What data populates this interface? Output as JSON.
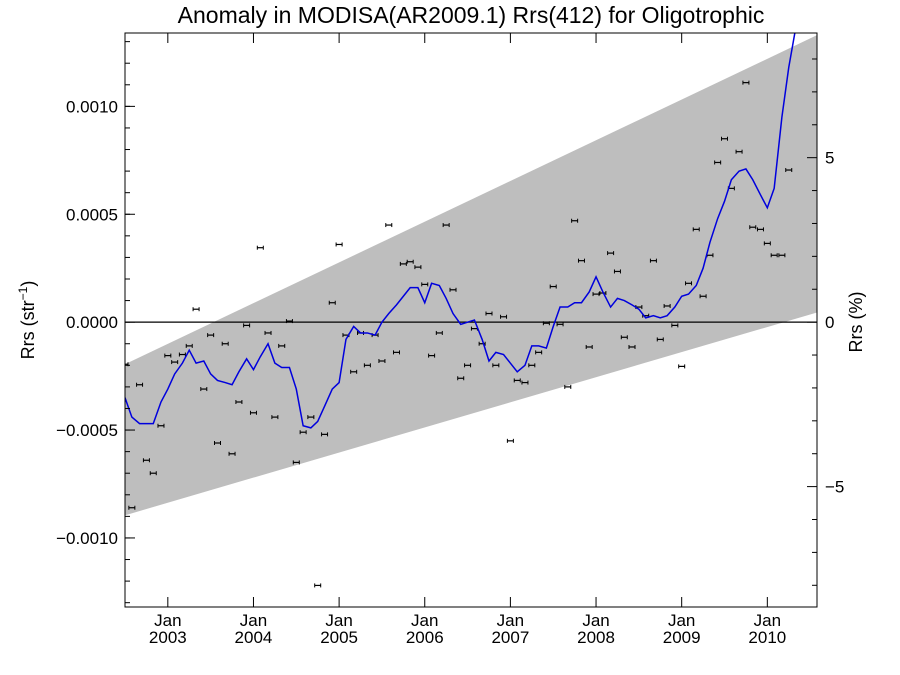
{
  "chart_data": {
    "type": "scatter",
    "title": "Anomaly in MODISA(AR2009.1) Rrs(412) for Oligotrophic",
    "ylabel_main": "Rrs (str",
    "ylabel_sup": "−1",
    "ylabel_close": ")",
    "ylabel_right": "Rrs (%)",
    "x_range": [
      2002.5,
      2010.58
    ],
    "ylim": [
      -0.00132,
      0.00134
    ],
    "ylim_right": [
      -8.66,
      8.79
    ],
    "x_ticks": [
      {
        "x": 2003.0,
        "label1": "Jan",
        "label2": "2003"
      },
      {
        "x": 2004.0,
        "label1": "Jan",
        "label2": "2004"
      },
      {
        "x": 2005.0,
        "label1": "Jan",
        "label2": "2005"
      },
      {
        "x": 2006.0,
        "label1": "Jan",
        "label2": "2006"
      },
      {
        "x": 2007.0,
        "label1": "Jan",
        "label2": "2007"
      },
      {
        "x": 2008.0,
        "label1": "Jan",
        "label2": "2008"
      },
      {
        "x": 2009.0,
        "label1": "Jan",
        "label2": "2009"
      },
      {
        "x": 2010.0,
        "label1": "Jan",
        "label2": "2010"
      }
    ],
    "y_ticks": [
      {
        "v": 0.001,
        "label": "0.0010"
      },
      {
        "v": 0.0005,
        "label": "0.0005"
      },
      {
        "v": 0.0,
        "label": "0.0000"
      },
      {
        "v": -0.0005,
        "label": "−0.0005"
      },
      {
        "v": -0.001,
        "label": "−0.0010"
      }
    ],
    "y_ticks_right": [
      {
        "v": 5,
        "label": "5"
      },
      {
        "v": 0,
        "label": "0"
      },
      {
        "v": -5,
        "label": "−5"
      }
    ],
    "band": {
      "x": [
        2002.5,
        2010.58
      ],
      "upper": [
        -0.000195,
        0.00133
      ],
      "lower": [
        -0.000895,
        4.5e-05
      ]
    },
    "colors": {
      "band": "#bebebe",
      "line": "#0000dd",
      "points": "#000000",
      "zero": "#000000"
    },
    "series": [
      {
        "kind": "monthly_points",
        "x": [
          2002.5,
          2002.58,
          2002.67,
          2002.75,
          2002.83,
          2002.92,
          2003.0,
          2003.08,
          2003.17,
          2003.25,
          2003.33,
          2003.42,
          2003.5,
          2003.58,
          2003.67,
          2003.75,
          2003.83,
          2003.92,
          2004.0,
          2004.08,
          2004.17,
          2004.25,
          2004.33,
          2004.42,
          2004.5,
          2004.58,
          2004.67,
          2004.75,
          2004.83,
          2004.92,
          2005.0,
          2005.08,
          2005.17,
          2005.25,
          2005.33,
          2005.42,
          2005.5,
          2005.58,
          2005.67,
          2005.75,
          2005.83,
          2005.92,
          2006.0,
          2006.08,
          2006.17,
          2006.25,
          2006.33,
          2006.42,
          2006.5,
          2006.58,
          2006.67,
          2006.75,
          2006.83,
          2006.92,
          2007.0,
          2007.08,
          2007.17,
          2007.25,
          2007.33,
          2007.42,
          2007.5,
          2007.58,
          2007.67,
          2007.75,
          2007.83,
          2007.92,
          2008.0,
          2008.08,
          2008.17,
          2008.25,
          2008.33,
          2008.42,
          2008.5,
          2008.58,
          2008.67,
          2008.75,
          2008.83,
          2008.92,
          2009.0,
          2009.08,
          2009.17,
          2009.25,
          2009.33,
          2009.42,
          2009.5,
          2009.58,
          2009.67,
          2009.75,
          2009.83,
          2009.92,
          2010.0,
          2010.08,
          2010.17,
          2010.25
        ],
        "values": [
          -0.000195,
          -0.00086,
          -0.00029,
          -0.00064,
          -0.0007,
          -0.00048,
          -0.000155,
          -0.000185,
          -0.00015,
          -0.00011,
          6e-05,
          -0.00031,
          -6e-05,
          -0.00056,
          -0.0001,
          -0.00061,
          -0.00037,
          -1.5e-05,
          -0.00042,
          0.000345,
          -5e-05,
          -0.00044,
          -0.00011,
          5e-06,
          -0.00065,
          -0.00051,
          -0.00044,
          -0.00122,
          -0.00052,
          9e-05,
          0.00036,
          -6e-05,
          -0.00023,
          -5e-05,
          -0.0002,
          -6e-05,
          -0.00018,
          0.00045,
          -0.00014,
          0.00027,
          0.00028,
          0.000255,
          0.000175,
          -0.000155,
          -5e-05,
          0.00045,
          0.00015,
          -0.00026,
          -0.0002,
          -3e-05,
          -0.0001,
          4e-05,
          -0.0002,
          2.5e-05,
          -0.00055,
          -0.00027,
          -0.00028,
          -0.0002,
          -0.00014,
          -5e-06,
          0.000165,
          -1e-05,
          -0.0003,
          0.00047,
          0.000285,
          -0.000115,
          0.00013,
          0.000135,
          0.00032,
          0.000235,
          -7e-05,
          -0.000115,
          7e-05,
          3e-05,
          0.000285,
          -8e-05,
          7.5e-05,
          -1.5e-05,
          -0.000205,
          0.00018,
          0.00043,
          0.00012,
          0.00031,
          0.00074,
          0.00085,
          0.00062,
          0.00079,
          0.00111,
          0.00044,
          0.00043,
          0.000365,
          0.00031,
          0.00031,
          0.000705
        ]
      },
      {
        "kind": "running_mean",
        "x": [
          2002.5,
          2002.58,
          2002.67,
          2002.75,
          2002.83,
          2002.92,
          2003.0,
          2003.08,
          2003.17,
          2003.25,
          2003.33,
          2003.42,
          2003.5,
          2003.58,
          2003.67,
          2003.75,
          2003.83,
          2003.92,
          2004.0,
          2004.08,
          2004.17,
          2004.25,
          2004.33,
          2004.42,
          2004.5,
          2004.58,
          2004.67,
          2004.75,
          2004.83,
          2004.92,
          2005.0,
          2005.08,
          2005.17,
          2005.25,
          2005.33,
          2005.42,
          2005.5,
          2005.58,
          2005.67,
          2005.75,
          2005.83,
          2005.92,
          2006.0,
          2006.08,
          2006.17,
          2006.25,
          2006.33,
          2006.42,
          2006.5,
          2006.58,
          2006.67,
          2006.75,
          2006.83,
          2006.92,
          2007.0,
          2007.08,
          2007.17,
          2007.25,
          2007.33,
          2007.42,
          2007.5,
          2007.58,
          2007.67,
          2007.75,
          2007.83,
          2007.92,
          2008.0,
          2008.08,
          2008.17,
          2008.25,
          2008.33,
          2008.42,
          2008.5,
          2008.58,
          2008.67,
          2008.75,
          2008.83,
          2008.92,
          2009.0,
          2009.08,
          2009.17,
          2009.25,
          2009.33,
          2009.42,
          2009.5,
          2009.58,
          2009.67,
          2009.75,
          2009.83,
          2009.92,
          2010.0,
          2010.08,
          2010.17,
          2010.25,
          2010.33
        ],
        "values": [
          -0.00035,
          -0.00044,
          -0.00047,
          -0.00047,
          -0.00047,
          -0.00037,
          -0.00031,
          -0.00024,
          -0.00019,
          -0.00013,
          -0.00019,
          -0.00018,
          -0.00024,
          -0.00027,
          -0.00028,
          -0.00029,
          -0.00023,
          -0.00017,
          -0.00022,
          -0.00016,
          -0.0001,
          -0.00019,
          -0.00021,
          -0.00021,
          -0.00031,
          -0.00048,
          -0.00049,
          -0.00046,
          -0.00039,
          -0.00031,
          -0.00028,
          -8e-05,
          -2e-05,
          -5e-05,
          -5e-05,
          -6e-05,
          0.0,
          4e-05,
          8e-05,
          0.00012,
          0.00016,
          0.00016,
          9e-05,
          0.00018,
          0.00017,
          0.00011,
          4e-05,
          -1e-05,
          0.0,
          1e-05,
          -8e-05,
          -0.00018,
          -0.00014,
          -0.00015,
          -0.00019,
          -0.00023,
          -0.0002,
          -0.00011,
          -0.00011,
          -0.00012,
          -2e-05,
          7e-05,
          7e-05,
          9e-05,
          9e-05,
          0.00014,
          0.00021,
          0.00014,
          7e-05,
          0.00011,
          0.0001,
          8e-05,
          6e-05,
          2e-05,
          3e-05,
          2e-05,
          3e-05,
          7e-05,
          0.00012,
          0.00013,
          0.00017,
          0.00025,
          0.00037,
          0.00048,
          0.00056,
          0.00066,
          0.0007,
          0.00071,
          0.00066,
          0.00059,
          0.00053,
          0.00062,
          0.00095,
          0.00118,
          0.00136
        ]
      }
    ]
  }
}
